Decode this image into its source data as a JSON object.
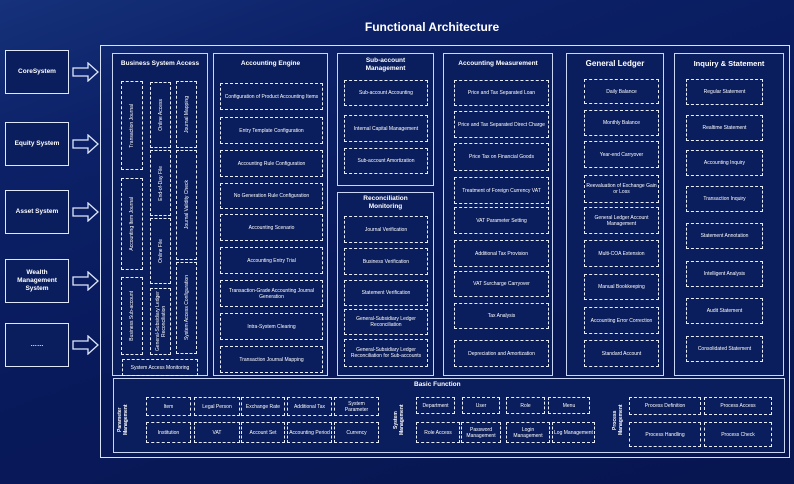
{
  "title": "Functional Architecture",
  "source_systems": [
    "CoreSystem",
    "Equity System",
    "Asset System",
    "Wealth Management System",
    "……"
  ],
  "business_system_access": {
    "title": "Business System Access",
    "items": [
      "Transaction Journal",
      "Accounting Item Journal",
      "Business Sub-account",
      "Online Access",
      "End-of-Day File",
      "Online File",
      "General-Subsidiary Ledger Reconciliation",
      "Journal Mapping",
      "Journal Validity Check",
      "System Access Configuration"
    ],
    "monitoring": "System Access Monitoring"
  },
  "accounting_engine": {
    "title": "Accounting Engine",
    "items": [
      "Configuration of Product Accounting Items",
      "Entry Template Configuration",
      "Accounting Rule Configuration",
      "No Generation Rule Configuration",
      "Accounting Scenario",
      "Accounting Entry Trial",
      "Transaction-Grade Accounting Journal Generation",
      "Intra-System Clearing",
      "Transaction Journal Mapping"
    ]
  },
  "sub_account_management": {
    "title": "Sub-account Management",
    "items": [
      "Sub-account Accounting",
      "Internal Capital Management",
      "Sub-account Amortization"
    ]
  },
  "reconciliation_monitoring": {
    "title": "Reconciliation Monitoring",
    "items": [
      "Journal Verification",
      "Business Verification",
      "Statement Verification",
      "General-Subsidiary Ledger Reconciliation",
      "General-Subsidiary Ledger Reconciliation for Sub-accounts"
    ]
  },
  "accounting_measurement": {
    "title": "Accounting Measurement",
    "items": [
      "Price and Tax Separated Loan",
      "Price and Tax Separated Direct Charge",
      "Price Tax on Financial Goods",
      "Treatment of Foreign Currency VAT",
      "VAT Parameter Setting",
      "Additional Tax Provision",
      "VAT Surcharge Carryover",
      "Tax Analysis",
      "Depreciation and Amortization"
    ]
  },
  "general_ledger": {
    "title": "General Ledger",
    "items": [
      "Daily Balance",
      "Monthly Balance",
      "Year-end Carryover",
      "Reevaluation of Exchange Gain or Loss",
      "General Ledger Account Management",
      "Multi-COA Extension",
      "Manual Bookkeeping",
      "Accounting Error Correction",
      "Standard Account"
    ]
  },
  "inquiry_statement": {
    "title": "Inquiry & Statement",
    "items": [
      "Regular Statement",
      "Realtime Statement",
      "Accounting Inquiry",
      "Transaction Inquiry",
      "Statement Annotation",
      "Intelligent Analysis",
      "Audit Statement",
      "Consolidated Statement"
    ]
  },
  "basic_function": {
    "title": "Basic Function",
    "parameter_management": {
      "label": "Parameter Management",
      "items": [
        "Item",
        "Legal Person",
        "Exchange Rate",
        "Additional Tax",
        "System Parameter",
        "Institution",
        "VAT",
        "Account Set",
        "Accounting Period",
        "Currency"
      ]
    },
    "system_management": {
      "label": "System Management",
      "items": [
        "Department",
        "User",
        "Role",
        "Menu",
        "Role Access",
        "Password Management",
        "Login Management",
        "Log Management"
      ]
    },
    "process_management": {
      "label": "Process Management",
      "items": [
        "Process Definition",
        "Process Access",
        "Process Handling",
        "Process Check"
      ]
    }
  }
}
